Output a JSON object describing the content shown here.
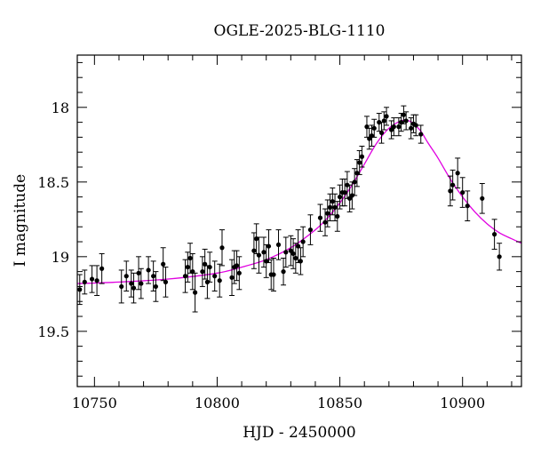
{
  "chart_data": {
    "type": "scatter",
    "title": "OGLE-2025-BLG-1110",
    "xlabel": "HJD - 2450000",
    "ylabel": "I magnitude",
    "xlim": [
      10743,
      10924
    ],
    "ylim": [
      19.87,
      17.65
    ],
    "y_inverted": true,
    "grid": false,
    "x_ticks": [
      10750,
      10800,
      10850,
      10900
    ],
    "x_tick_labels": [
      "10750",
      "10800",
      "10850",
      "10900"
    ],
    "y_ticks": [
      18,
      18.5,
      19,
      19.5
    ],
    "y_tick_labels": [
      "18",
      "18.5",
      "19",
      "19.5"
    ],
    "colors": {
      "data": "#000000",
      "model": "#e000e0"
    },
    "series": [
      {
        "x": [
          10744,
          10746,
          10749,
          10751,
          10753,
          10761,
          10763,
          10765,
          10766,
          10768,
          10769,
          10772,
          10774,
          10775,
          10778,
          10779,
          10787,
          10788,
          10789,
          10790,
          10791,
          10794,
          10795,
          10796,
          10797,
          10799,
          10801,
          10802,
          10806,
          10807,
          10808,
          10809,
          10815,
          10816,
          10817,
          10819,
          10820,
          10821,
          10822,
          10823,
          10825,
          10827,
          10828,
          10830,
          10831,
          10832,
          10833,
          10834,
          10835,
          10838,
          10842,
          10844,
          10845,
          10846,
          10847,
          10848,
          10849,
          10850,
          10851,
          10852,
          10853,
          10854,
          10855,
          10856,
          10857,
          10858,
          10859,
          10861,
          10862,
          10863,
          10864,
          10866,
          10867,
          10868,
          10869,
          10871,
          10872,
          10874,
          10875,
          10876,
          10877,
          10879,
          10880,
          10881,
          10883,
          10895,
          10896,
          10898,
          10900,
          10902,
          10908,
          10913,
          10915
        ],
        "y": [
          19.22,
          19.17,
          19.15,
          19.16,
          19.08,
          19.2,
          19.13,
          19.18,
          19.21,
          19.11,
          19.18,
          19.09,
          19.13,
          19.2,
          19.05,
          19.17,
          19.13,
          19.07,
          19.01,
          19.1,
          19.24,
          19.1,
          19.05,
          19.17,
          19.07,
          19.13,
          19.16,
          18.94,
          19.14,
          19.07,
          19.06,
          19.11,
          18.96,
          18.88,
          18.99,
          18.97,
          19.03,
          18.93,
          19.12,
          19.12,
          18.92,
          19.1,
          18.97,
          18.96,
          18.98,
          19.01,
          18.93,
          19.03,
          18.9,
          18.82,
          18.74,
          18.77,
          18.71,
          18.67,
          18.63,
          18.67,
          18.73,
          18.6,
          18.57,
          18.57,
          18.52,
          18.61,
          18.59,
          18.5,
          18.44,
          18.37,
          18.33,
          18.13,
          18.21,
          18.19,
          18.14,
          18.1,
          18.17,
          18.09,
          18.06,
          18.15,
          18.13,
          18.13,
          18.1,
          18.05,
          18.09,
          18.14,
          18.11,
          18.12,
          18.18,
          18.56,
          18.52,
          18.44,
          18.57,
          18.66,
          18.61,
          18.85,
          19.0
        ],
        "err": [
          0.1,
          0.08,
          0.09,
          0.1,
          0.1,
          0.11,
          0.1,
          0.09,
          0.1,
          0.11,
          0.1,
          0.09,
          0.1,
          0.1,
          0.11,
          0.1,
          0.11,
          0.1,
          0.1,
          0.12,
          0.13,
          0.1,
          0.1,
          0.11,
          0.1,
          0.1,
          0.11,
          0.12,
          0.12,
          0.11,
          0.1,
          0.11,
          0.12,
          0.1,
          0.12,
          0.1,
          0.11,
          0.11,
          0.1,
          0.11,
          0.1,
          0.09,
          0.1,
          0.1,
          0.1,
          0.1,
          0.11,
          0.09,
          0.1,
          0.1,
          0.09,
          0.09,
          0.09,
          0.09,
          0.09,
          0.09,
          0.1,
          0.08,
          0.09,
          0.09,
          0.09,
          0.09,
          0.09,
          0.09,
          0.09,
          0.08,
          0.07,
          0.07,
          0.07,
          0.07,
          0.06,
          0.06,
          0.07,
          0.06,
          0.06,
          0.06,
          0.06,
          0.06,
          0.06,
          0.06,
          0.06,
          0.07,
          0.06,
          0.07,
          0.06,
          0.1,
          0.1,
          0.1,
          0.1,
          0.1,
          0.1,
          0.1,
          0.09
        ]
      }
    ],
    "model": {
      "x": [
        10743,
        10760,
        10780,
        10800,
        10810,
        10820,
        10830,
        10840,
        10845,
        10850,
        10855,
        10860,
        10865,
        10870,
        10875,
        10878,
        10880,
        10883,
        10886,
        10890,
        10895,
        10900,
        10905,
        10910,
        10915,
        10920,
        10924
      ],
      "y": [
        19.18,
        19.17,
        19.15,
        19.11,
        19.07,
        19.02,
        18.94,
        18.82,
        18.74,
        18.64,
        18.52,
        18.38,
        18.24,
        18.14,
        18.09,
        18.09,
        18.11,
        18.16,
        18.24,
        18.34,
        18.48,
        18.6,
        18.7,
        18.78,
        18.84,
        18.88,
        18.91
      ]
    }
  }
}
